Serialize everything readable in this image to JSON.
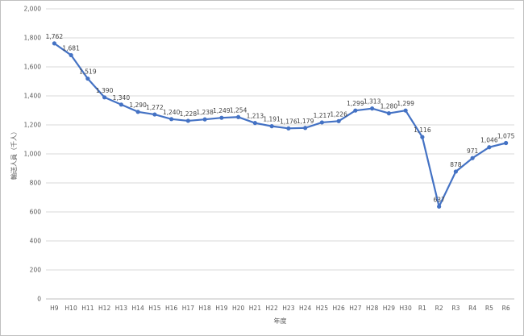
{
  "chart_data": {
    "type": "line",
    "title": "",
    "xlabel": "年度",
    "ylabel": "輸送人員（千人）",
    "ylim": [
      0,
      2000
    ],
    "yticks": [
      0,
      200,
      400,
      600,
      800,
      1000,
      1200,
      1400,
      1600,
      1800,
      2000
    ],
    "ytick_labels": [
      "0",
      "200",
      "400",
      "600",
      "800",
      "1,000",
      "1,200",
      "1,400",
      "1,600",
      "1,800",
      "2,000"
    ],
    "grid": true,
    "legend": "none",
    "categories": [
      "H9",
      "H10",
      "H11",
      "H12",
      "H13",
      "H14",
      "H15",
      "H16",
      "H17",
      "H18",
      "H19",
      "H20",
      "H21",
      "H22",
      "H23",
      "H24",
      "H25",
      "H26",
      "H27",
      "H28",
      "H29",
      "H30",
      "R1",
      "R2",
      "R3",
      "R4",
      "R5",
      "R6"
    ],
    "series": [
      {
        "color": "#4472c4",
        "values": [
          1762,
          1681,
          1519,
          1390,
          1340,
          1290,
          1272,
          1240,
          1228,
          1238,
          1249,
          1254,
          1213,
          1191,
          1176,
          1179,
          1217,
          1226,
          1299,
          1313,
          1280,
          1299,
          1116,
          637,
          878,
          971,
          1046,
          1075
        ],
        "labels": [
          "1,762",
          "1,681",
          "1,519",
          "1,390",
          "1,340",
          "1,290",
          "1,272",
          "1,240",
          "1,228",
          "1,238",
          "1,249",
          "1,254",
          "1,213",
          "1,191",
          "1,176",
          "1,179",
          "1,217",
          "1,226",
          "1,299",
          "1,313",
          "1,280",
          "1,299",
          "1,116",
          "637",
          "878",
          "971",
          "1,046",
          "1,075"
        ]
      }
    ]
  }
}
